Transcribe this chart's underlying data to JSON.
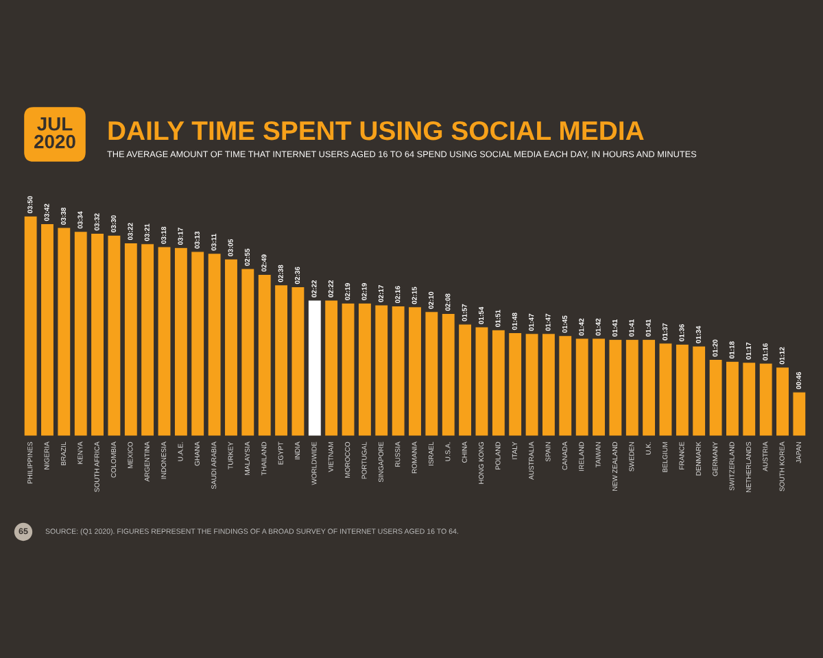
{
  "chart_data": {
    "type": "bar",
    "title": "DAILY TIME SPENT USING SOCIAL MEDIA",
    "subtitle": "THE AVERAGE AMOUNT OF TIME THAT INTERNET USERS AGED 16 TO 64 SPEND USING SOCIAL MEDIA EACH DAY, IN HOURS AND MINUTES",
    "annotations": [
      "JUL\n2020",
      "65",
      "SOURCE: (Q1 2020). FIGURES REPRESENT THE FINDINGS OF A BROAD SURVEY OF INTERNET USERS AGED 16 TO 64."
    ],
    "categories": [
      "PHILIPPINES",
      "NIGERIA",
      "BRAZIL",
      "KENYA",
      "SOUTH AFRICA",
      "COLOMBIA",
      "MEXICO",
      "ARGENTINA",
      "INDONESIA",
      "U.A.E.",
      "GHANA",
      "SAUDI ARABIA",
      "TURKEY",
      "MALAYSIA",
      "THAILAND",
      "EGYPT",
      "INDIA",
      "WORLDWIDE",
      "VIETNAM",
      "MOROCCO",
      "PORTUGAL",
      "SINGAPORE",
      "RUSSIA",
      "ROMANIA",
      "ISRAEL",
      "U.S.A.",
      "CHINA",
      "HONG KONG",
      "POLAND",
      "ITALY",
      "AUSTRALIA",
      "SPAIN",
      "CANADA",
      "IRELAND",
      "TAIWAN",
      "NEW ZEALAND",
      "SWEDEN",
      "U.K.",
      "BELGIUM",
      "FRANCE",
      "DENMARK",
      "GERMANY",
      "SWITZERLAND",
      "NETHERLANDS",
      "AUSTRIA",
      "SOUTH KOREA",
      "JAPAN"
    ],
    "values": [
      230,
      222,
      218,
      214,
      212,
      210,
      202,
      201,
      198,
      197,
      193,
      191,
      185,
      175,
      169,
      158,
      156,
      142,
      142,
      139,
      139,
      137,
      136,
      135,
      130,
      128,
      117,
      114,
      111,
      108,
      107,
      107,
      105,
      102,
      102,
      101,
      101,
      101,
      97,
      96,
      94,
      80,
      78,
      77,
      76,
      72,
      46
    ],
    "value_labels": [
      "03:50",
      "03:42",
      "03:38",
      "03:34",
      "03:32",
      "03:30",
      "03:22",
      "03:21",
      "03:18",
      "03:17",
      "03:13",
      "03:11",
      "03:05",
      "02:55",
      "02:49",
      "02:38",
      "02:36",
      "02:22",
      "02:22",
      "02:19",
      "02:19",
      "02:17",
      "02:16",
      "02:15",
      "02:10",
      "02:08",
      "01:57",
      "01:54",
      "01:51",
      "01:48",
      "01:47",
      "01:47",
      "01:45",
      "01:42",
      "01:42",
      "01:41",
      "01:41",
      "01:41",
      "01:37",
      "01:36",
      "01:34",
      "01:20",
      "01:18",
      "01:17",
      "01:16",
      "01:12",
      "00:46"
    ],
    "colors": [
      "#f7a11a",
      "#f7a11a",
      "#f7a11a",
      "#f7a11a",
      "#f7a11a",
      "#f7a11a",
      "#f7a11a",
      "#f7a11a",
      "#f7a11a",
      "#f7a11a",
      "#f7a11a",
      "#f7a11a",
      "#f7a11a",
      "#f7a11a",
      "#f7a11a",
      "#f7a11a",
      "#f7a11a",
      "#ffffff",
      "#f7a11a",
      "#f7a11a",
      "#f7a11a",
      "#f7a11a",
      "#f7a11a",
      "#f7a11a",
      "#f7a11a",
      "#f7a11a",
      "#f7a11a",
      "#f7a11a",
      "#f7a11a",
      "#f7a11a",
      "#f7a11a",
      "#f7a11a",
      "#f7a11a",
      "#f7a11a",
      "#f7a11a",
      "#f7a11a",
      "#f7a11a",
      "#f7a11a",
      "#f7a11a",
      "#f7a11a",
      "#f7a11a",
      "#f7a11a",
      "#f7a11a",
      "#f7a11a",
      "#f7a11a",
      "#f7a11a",
      "#f7a11a"
    ],
    "grid": false,
    "legend": false
  }
}
